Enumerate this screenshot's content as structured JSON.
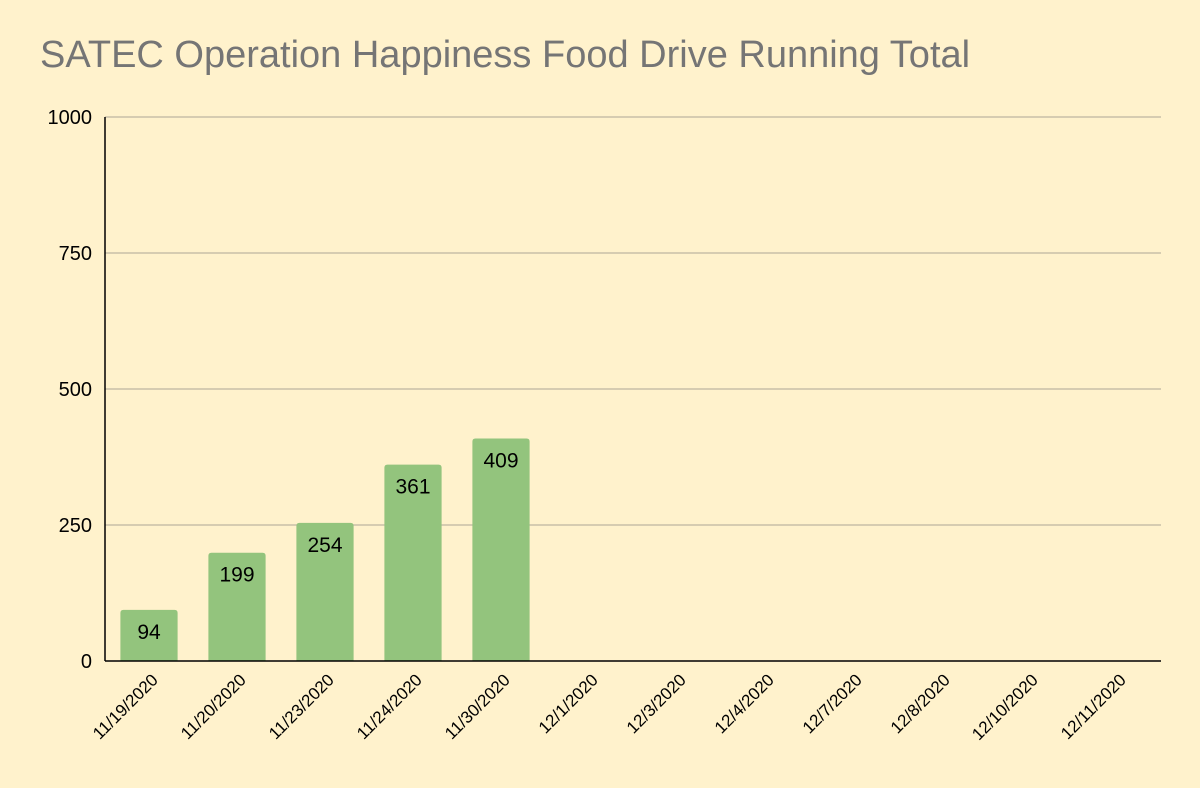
{
  "chart_data": {
    "type": "bar",
    "title": "SATEC Operation Happiness Food Drive Running Total",
    "xlabel": "",
    "ylabel": "",
    "categories": [
      "11/19/2020",
      "11/20/2020",
      "11/23/2020",
      "11/24/2020",
      "11/30/2020",
      "12/1/2020",
      "12/3/2020",
      "12/4/2020",
      "12/7/2020",
      "12/8/2020",
      "12/10/2020",
      "12/11/2020"
    ],
    "values": [
      94,
      199,
      254,
      361,
      409,
      null,
      null,
      null,
      null,
      null,
      null,
      null
    ],
    "ylim": [
      0,
      1000
    ],
    "yticks": [
      0,
      250,
      500,
      750,
      1000
    ],
    "grid": true,
    "data_labels": true,
    "legend": "none",
    "colors": {
      "background": "#fff2cc",
      "bar": "#93c47d",
      "gridline": "#c8bfa8",
      "axis": "#000000",
      "title": "#757575"
    }
  }
}
